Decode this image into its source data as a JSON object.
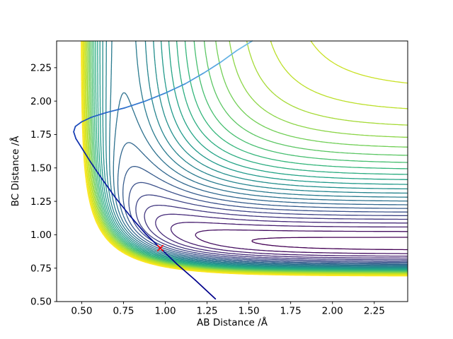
{
  "chart_data": {
    "type": "contour",
    "title": "",
    "xlabel": "AB Distance /Å",
    "ylabel": "BC Distance /Å",
    "xlim": [
      0.35,
      2.45
    ],
    "ylim": [
      0.5,
      2.45
    ],
    "xticks": {
      "values": [
        0.5,
        0.75,
        1.0,
        1.25,
        1.5,
        1.75,
        2.0,
        2.25
      ],
      "labels": [
        "0.50",
        "0.75",
        "1.00",
        "1.25",
        "1.50",
        "1.75",
        "2.00",
        "2.25"
      ]
    },
    "yticks": {
      "values": [
        0.5,
        0.75,
        1.0,
        1.25,
        1.5,
        1.75,
        2.0,
        2.25
      ],
      "labels": [
        "0.50",
        "0.75",
        "1.00",
        "1.25",
        "1.50",
        "1.75",
        "2.00",
        "2.25"
      ]
    },
    "grid": false,
    "legend": null,
    "colormap": {
      "name": "viridis",
      "stops": [
        "#440154",
        "#482878",
        "#3e4989",
        "#31688e",
        "#26828e",
        "#1f9e89",
        "#35b779",
        "#6ece58",
        "#b5de2b",
        "#dce319",
        "#fde725"
      ]
    },
    "levels": {
      "min": -98,
      "max": 10,
      "count": 28
    },
    "surface": {
      "description": "Potential energy surface V(AB,BC) = Morse(AB) + Morse(BC) + A*exp(-k*(AB+BC)); L-shaped valley with reactant channel along BC ~0.93 and product channel along AB ~0.74",
      "morse_AB": {
        "D": 60,
        "a": 3.0,
        "re": 0.74
      },
      "morse_BC": {
        "D": 100,
        "a": 3.0,
        "re": 0.93
      },
      "repulsion": {
        "A": 20900,
        "k": 3.0
      }
    },
    "trajectory": {
      "points": [
        [
          1.3,
          0.52
        ],
        [
          1.18,
          0.66
        ],
        [
          1.07,
          0.78
        ],
        [
          0.97,
          0.9
        ],
        [
          0.88,
          1.01
        ],
        [
          0.79,
          1.14
        ],
        [
          0.7,
          1.28
        ],
        [
          0.62,
          1.42
        ],
        [
          0.55,
          1.55
        ],
        [
          0.5,
          1.65
        ],
        [
          0.465,
          1.72
        ],
        [
          0.452,
          1.77
        ],
        [
          0.462,
          1.81
        ],
        [
          0.5,
          1.845
        ],
        [
          0.56,
          1.88
        ],
        [
          0.65,
          1.915
        ],
        [
          0.76,
          1.95
        ],
        [
          0.88,
          2.0
        ],
        [
          1.0,
          2.06
        ],
        [
          1.12,
          2.13
        ],
        [
          1.23,
          2.21
        ],
        [
          1.33,
          2.29
        ],
        [
          1.43,
          2.38
        ],
        [
          1.52,
          2.45
        ]
      ],
      "color_stops": [
        "#00008b",
        "#0a28a8",
        "#1e56c3",
        "#3f8ed6",
        "#6fbde8"
      ]
    },
    "marker": {
      "x": 0.97,
      "y": 0.9,
      "symbol": "x",
      "color": "#ff0000"
    }
  }
}
